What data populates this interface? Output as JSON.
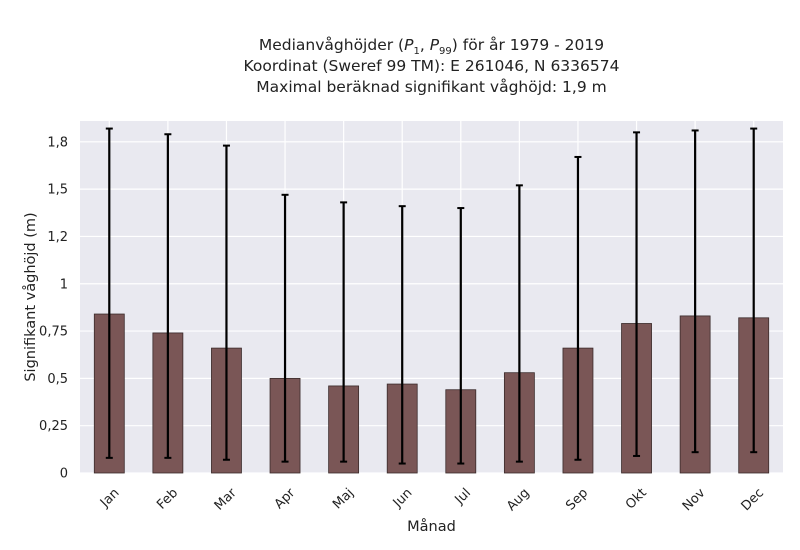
{
  "chart_data": {
    "type": "bar",
    "title_lines": [
      "Medianvåghöjder (P1, P99) för år 1979 - 2019",
      "Koordinat (Sweref 99 TM): E 261046, N 6336574",
      "Maximal beräknad signifikant våghöjd: 1,9 m"
    ],
    "title_parts": {
      "prefix": "Medianvåghöjder (",
      "p_letter": "P",
      "p1_sub": "1",
      "separator": ", ",
      "p99_sub": "99",
      "suffix": ") för år 1979 - 2019"
    },
    "xlabel": "Månad",
    "ylabel": "Signifikant våghöjd (m)",
    "categories": [
      "Jan",
      "Feb",
      "Mar",
      "Apr",
      "Maj",
      "Jun",
      "Jul",
      "Aug",
      "Sep",
      "Okt",
      "Nov",
      "Dec"
    ],
    "series": [
      {
        "values": [
          0.84,
          0.74,
          0.66,
          0.5,
          0.46,
          0.47,
          0.44,
          0.53,
          0.66,
          0.79,
          0.83,
          0.82
        ],
        "p1": [
          0.08,
          0.08,
          0.07,
          0.06,
          0.06,
          0.05,
          0.05,
          0.06,
          0.07,
          0.09,
          0.11,
          0.11
        ],
        "p99": [
          1.82,
          1.79,
          1.73,
          1.47,
          1.43,
          1.41,
          1.4,
          1.52,
          1.67,
          1.8,
          1.81,
          1.82
        ]
      }
    ],
    "ylim": [
      0,
      1.86
    ],
    "yticks": [
      0,
      0.25,
      0.5,
      0.75,
      1,
      1.25,
      1.5,
      1.75
    ],
    "ytick_labels": [
      "0",
      "0,25",
      "0,5",
      "0,75",
      "1",
      "1,2",
      "1,5",
      "1,8"
    ],
    "grid": true,
    "colors": {
      "bar": "#7a5656",
      "bar_edge": "#3a2a2a",
      "error": "#000000",
      "plot_bg": "#e9e9f0",
      "grid": "#ffffff"
    }
  }
}
